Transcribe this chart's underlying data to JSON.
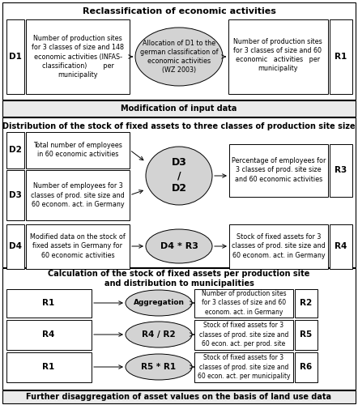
{
  "title": "Reclassification of economic activities",
  "section2_title": "Modification of input data",
  "section3_title": "Distribution of the stock of fixed assets to three classes of production site size",
  "section4_title": "Calculation of the stock of fixed assets per production site\nand distribution to municipalities",
  "footer_title": "Further disaggregation of asset values on the basis of land use data",
  "bg_color": "#ffffff",
  "ellipse_facecolor": "#d3d3d3",
  "font_size": 5.8,
  "title_font_size": 8.0,
  "section_title_font_size": 7.0,
  "label_font_size": 7.5
}
